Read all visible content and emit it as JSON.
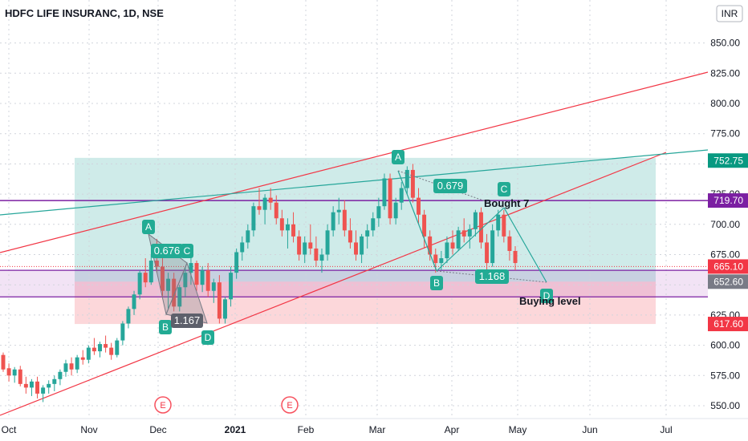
{
  "chart_data": {
    "type": "candlestick",
    "title": "HDFC LIFE INSURANC, 1D, NSE",
    "currency": "INR",
    "ylim": [
      540,
      890
    ],
    "y_ticks": [
      "550.00",
      "575.00",
      "600.00",
      "625.00",
      "650.00",
      "675.00",
      "700.00",
      "725.00",
      "750.00",
      "775.00",
      "800.00",
      "825.00",
      "850.00"
    ],
    "x_labels": [
      "Oct",
      "Nov",
      "Dec",
      "2021",
      "Feb",
      "Mar",
      "Apr",
      "May",
      "Jun",
      "Jul"
    ],
    "price_labels": [
      {
        "value": 752.75,
        "text": "752.75",
        "color": "#089981"
      },
      {
        "value": 719.7,
        "text": "719.70",
        "color": "#7b1fa2"
      },
      {
        "value": 665.1,
        "text": "665.10",
        "color": "#f23645"
      },
      {
        "value": 652.6,
        "text": "652.60",
        "color": "#787b86"
      },
      {
        "value": 617.6,
        "text": "617.60",
        "color": "#f23645"
      }
    ],
    "horizontal_lines": [
      719.7,
      652.6,
      640.0
    ],
    "current_price": 665.1,
    "zones": [
      {
        "name": "target-zone",
        "from": 652.6,
        "to": 755,
        "color": "#26a69a"
      },
      {
        "name": "stop-zone",
        "from": 617.6,
        "to": 652.6,
        "color": "#f23645"
      },
      {
        "name": "buy-band",
        "from": 640,
        "to": 662,
        "color": "#9c27b0"
      }
    ],
    "harmonic_1": {
      "points": [
        "A",
        "B",
        "C",
        "D"
      ],
      "ratios": [
        "0.676",
        "1.167"
      ]
    },
    "harmonic_2": {
      "points": [
        "A",
        "B",
        "C",
        "D"
      ],
      "ratios": [
        "0.679",
        "1.168"
      ]
    },
    "annotations": [
      "Bought 7",
      "Buying level"
    ],
    "events": [
      "E",
      "E"
    ],
    "candles": [
      [
        592,
        594,
        578,
        580
      ],
      [
        581,
        585,
        570,
        575
      ],
      [
        575,
        582,
        569,
        580
      ],
      [
        580,
        583,
        566,
        568
      ],
      [
        568,
        574,
        560,
        565
      ],
      [
        565,
        572,
        558,
        570
      ],
      [
        570,
        574,
        556,
        560
      ],
      [
        560,
        567,
        553,
        565
      ],
      [
        565,
        571,
        560,
        568
      ],
      [
        568,
        575,
        562,
        572
      ],
      [
        572,
        580,
        567,
        578
      ],
      [
        578,
        588,
        574,
        585
      ],
      [
        585,
        590,
        575,
        580
      ],
      [
        580,
        592,
        577,
        590
      ],
      [
        590,
        596,
        584,
        588
      ],
      [
        588,
        600,
        585,
        598
      ],
      [
        598,
        606,
        592,
        595
      ],
      [
        595,
        603,
        590,
        601
      ],
      [
        601,
        608,
        594,
        598
      ],
      [
        598,
        602,
        588,
        592
      ],
      [
        592,
        606,
        590,
        604
      ],
      [
        604,
        620,
        600,
        618
      ],
      [
        618,
        632,
        614,
        630
      ],
      [
        630,
        645,
        625,
        642
      ],
      [
        642,
        662,
        638,
        660
      ],
      [
        660,
        672,
        648,
        652
      ],
      [
        652,
        675,
        650,
        670
      ],
      [
        670,
        688,
        660,
        665
      ],
      [
        665,
        672,
        640,
        645
      ],
      [
        645,
        660,
        630,
        655
      ],
      [
        655,
        660,
        628,
        632
      ],
      [
        632,
        650,
        628,
        648
      ],
      [
        648,
        665,
        640,
        660
      ],
      [
        660,
        672,
        650,
        668
      ],
      [
        668,
        670,
        645,
        650
      ],
      [
        650,
        665,
        644,
        662
      ],
      [
        662,
        668,
        640,
        645
      ],
      [
        645,
        655,
        635,
        652
      ],
      [
        652,
        658,
        618,
        622
      ],
      [
        622,
        640,
        618,
        638
      ],
      [
        638,
        665,
        632,
        660
      ],
      [
        660,
        680,
        655,
        677
      ],
      [
        677,
        690,
        670,
        685
      ],
      [
        685,
        700,
        680,
        695
      ],
      [
        695,
        718,
        690,
        715
      ],
      [
        715,
        730,
        708,
        712
      ],
      [
        712,
        725,
        700,
        722
      ],
      [
        722,
        730,
        712,
        718
      ],
      [
        718,
        724,
        700,
        705
      ],
      [
        705,
        712,
        690,
        695
      ],
      [
        695,
        705,
        680,
        700
      ],
      [
        700,
        710,
        685,
        690
      ],
      [
        690,
        695,
        670,
        675
      ],
      [
        675,
        690,
        668,
        685
      ],
      [
        685,
        700,
        675,
        680
      ],
      [
        680,
        690,
        665,
        670
      ],
      [
        670,
        680,
        660,
        675
      ],
      [
        675,
        700,
        670,
        695
      ],
      [
        695,
        715,
        690,
        710
      ],
      [
        710,
        722,
        700,
        712
      ],
      [
        712,
        720,
        690,
        695
      ],
      [
        695,
        705,
        680,
        685
      ],
      [
        685,
        695,
        670,
        675
      ],
      [
        675,
        692,
        668,
        690
      ],
      [
        690,
        700,
        680,
        695
      ],
      [
        695,
        710,
        690,
        705
      ],
      [
        705,
        722,
        698,
        715
      ],
      [
        715,
        742,
        712,
        738
      ],
      [
        738,
        742,
        700,
        705
      ],
      [
        705,
        722,
        700,
        718
      ],
      [
        718,
        735,
        712,
        730
      ],
      [
        730,
        748,
        725,
        745
      ],
      [
        745,
        750,
        718,
        722
      ],
      [
        722,
        730,
        700,
        708
      ],
      [
        708,
        712,
        680,
        690
      ],
      [
        690,
        695,
        670,
        675
      ],
      [
        675,
        680,
        660,
        668
      ],
      [
        668,
        678,
        662,
        672
      ],
      [
        672,
        690,
        668,
        685
      ],
      [
        685,
        695,
        675,
        680
      ],
      [
        680,
        698,
        678,
        695
      ],
      [
        695,
        705,
        685,
        690
      ],
      [
        690,
        700,
        680,
        696
      ],
      [
        696,
        712,
        690,
        710
      ],
      [
        710,
        714,
        680,
        685
      ],
      [
        685,
        692,
        662,
        668
      ],
      [
        668,
        700,
        665,
        695
      ],
      [
        695,
        712,
        690,
        708
      ],
      [
        708,
        712,
        685,
        690
      ],
      [
        690,
        695,
        670,
        678
      ],
      [
        678,
        682,
        662,
        668
      ]
    ]
  },
  "ui": {
    "currency_label": "INR",
    "ann_bought": "Bought 7",
    "ann_buying": "Buying level",
    "h1_A": "A",
    "h1_B": "B",
    "h1_C": "C",
    "h1_D": "D",
    "h1_r1": "0.676",
    "h1_r2": "1.167",
    "h2_A": "A",
    "h2_B": "B",
    "h2_C": "C",
    "h2_D": "D",
    "h2_r1": "0.679",
    "h2_r2": "1.168",
    "event1": "E",
    "event2": "E"
  }
}
